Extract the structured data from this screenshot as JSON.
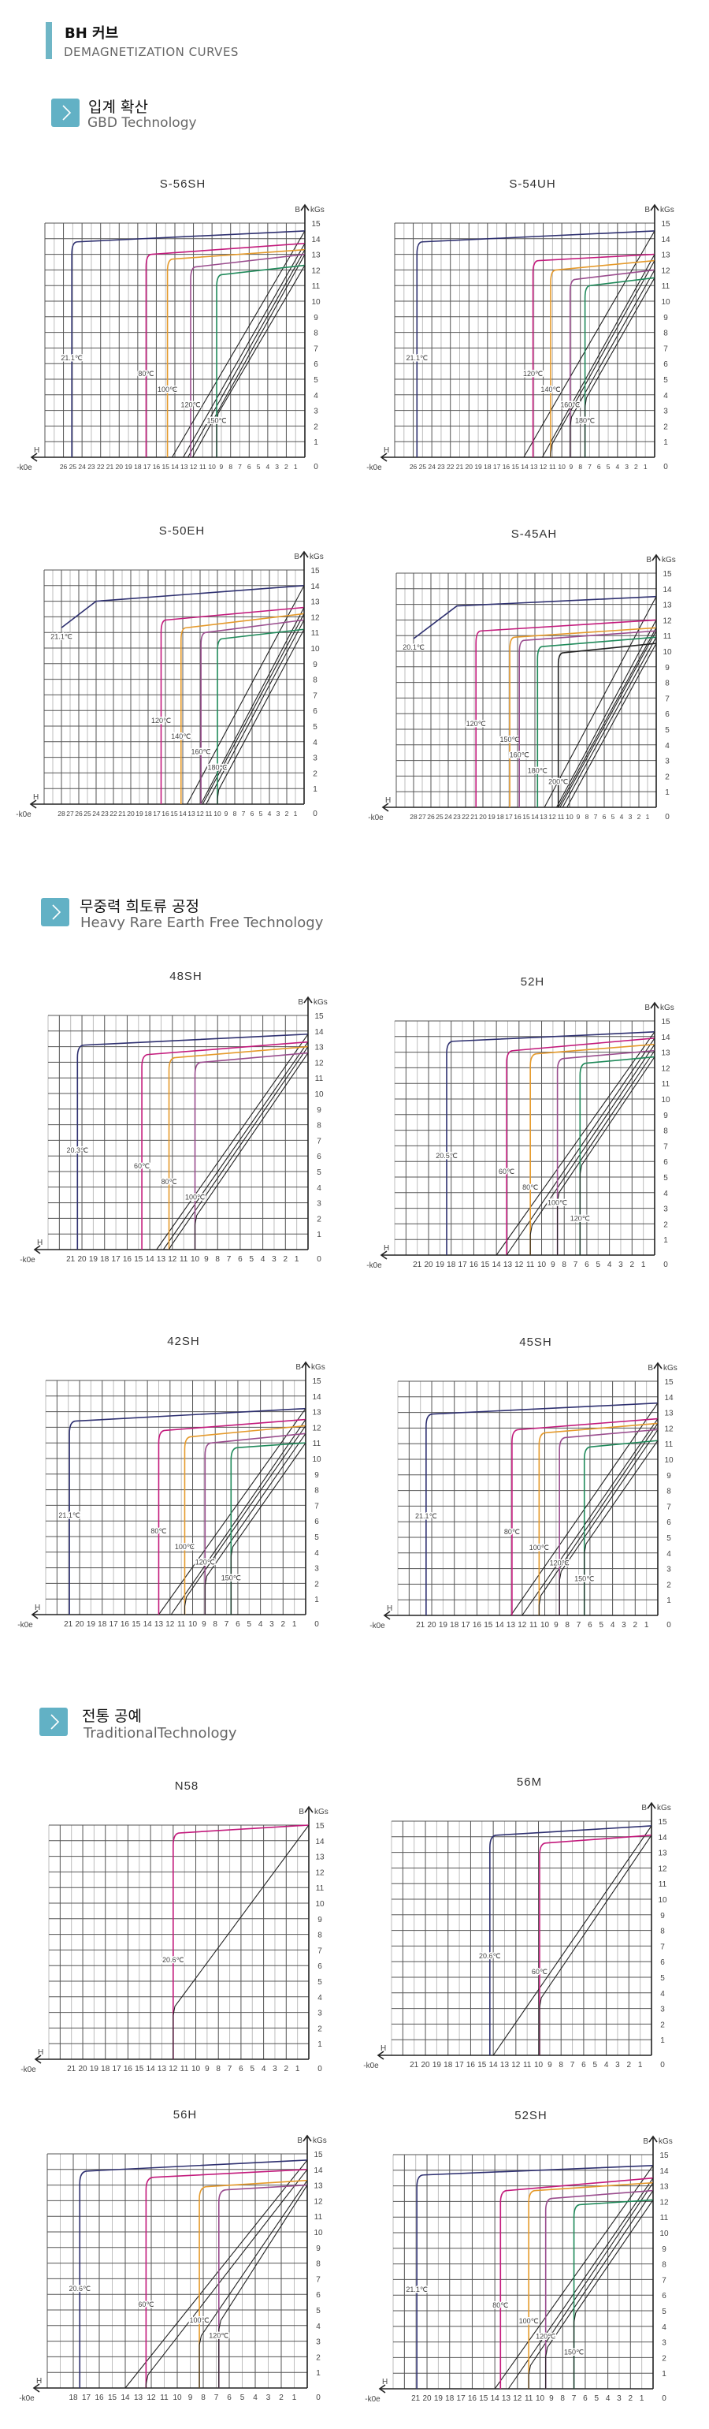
{
  "header": {
    "title": "BH 커브",
    "subtitle": "DEMAGNETIZATION CURVES",
    "accent": "#6fb6c6"
  },
  "sections": [
    {
      "title": "입계 확산",
      "subtitle": "GBD Technology",
      "icon": "chevron-right-icon"
    },
    {
      "title": "무중력 희토류 공정",
      "subtitle": "Heavy Rare Earth Free Technology",
      "icon": "chevron-right-icon"
    },
    {
      "title": "전통 공예",
      "subtitle": "TraditionalTechnology",
      "icon": "chevron-right-icon"
    }
  ],
  "axis_text": {
    "b": "B",
    "unit": "kGs",
    "h": "H",
    "h_unit": "-k0e",
    "origin": "0"
  },
  "chart_data": [
    {
      "type": "line",
      "title": "S-56SH",
      "xlim": [
        28,
        0
      ],
      "ylim": [
        0,
        15
      ],
      "grid": true,
      "xticks": [
        26,
        25,
        24,
        23,
        22,
        21,
        20,
        19,
        18,
        17,
        16,
        15,
        14,
        13,
        12,
        11,
        10,
        9,
        8,
        7,
        6,
        5,
        4,
        3,
        2,
        1
      ],
      "series": [
        {
          "name": "21.1℃",
          "color": "#2e3070",
          "Br": 14.5,
          "knee_B": 13.8,
          "Hcj": 25.1,
          "Hcb": 14.3
        },
        {
          "name": "80℃",
          "color": "#c31a7c",
          "Br": 13.7,
          "knee_B": 13.0,
          "Hcj": 17.1,
          "Hcb": 13.1
        },
        {
          "name": "100℃",
          "color": "#e59a2b",
          "Br": 13.3,
          "knee_B": 12.7,
          "Hcj": 14.8,
          "Hcb": 12.6
        },
        {
          "name": "120℃",
          "color": "#9a4d8e",
          "Br": 13.0,
          "knee_B": 12.2,
          "Hcj": 12.3,
          "Hcb": 12.1
        },
        {
          "name": "150℃",
          "color": "#1f8a5a",
          "Br": 12.3,
          "knee_B": 11.7,
          "Hcj": 9.5,
          "Hcb": 12.3
        }
      ]
    },
    {
      "type": "line",
      "title": "S-54UH",
      "xlim": [
        28,
        0
      ],
      "ylim": [
        0,
        15
      ],
      "grid": true,
      "xticks": [
        26,
        25,
        24,
        23,
        22,
        21,
        20,
        19,
        18,
        17,
        16,
        15,
        14,
        13,
        12,
        11,
        10,
        9,
        8,
        7,
        6,
        5,
        4,
        3,
        2,
        1
      ],
      "series": [
        {
          "name": "21.1℃",
          "color": "#2e3070",
          "Br": 14.5,
          "knee_B": 13.8,
          "Hcj": 25.6,
          "Hcb": 14.1
        },
        {
          "name": "120℃",
          "color": "#c31a7c",
          "Br": 13.0,
          "knee_B": 12.6,
          "Hcj": 13.1,
          "Hcb": 12.1
        },
        {
          "name": "140℃",
          "color": "#e59a2b",
          "Br": 12.6,
          "knee_B": 12.0,
          "Hcj": 11.2,
          "Hcb": 12.0
        },
        {
          "name": "160℃",
          "color": "#9a4d8e",
          "Br": 12.0,
          "knee_B": 11.4,
          "Hcj": 9.1,
          "Hcb": 11.6
        },
        {
          "name": "180℃",
          "color": "#1f8a5a",
          "Br": 11.5,
          "knee_B": 11.0,
          "Hcj": 7.5,
          "Hcb": 11.2
        }
      ]
    },
    {
      "type": "line",
      "title": "S-50EH",
      "xlim": [
        30,
        0
      ],
      "ylim": [
        0,
        15
      ],
      "grid": true,
      "xticks": [
        28,
        27,
        26,
        25,
        24,
        23,
        22,
        21,
        20,
        19,
        18,
        17,
        16,
        15,
        14,
        13,
        12,
        11,
        10,
        9,
        8,
        7,
        6,
        5,
        4,
        3,
        2,
        1
      ],
      "series": [
        {
          "name": "21.1℃",
          "color": "#2e3070",
          "Br": 14.0,
          "knee_H": 24,
          "knee_B": 13.0,
          "Hcj": 28,
          "end_B": 11.3,
          "Hcb": 13.5
        },
        {
          "name": "120℃",
          "color": "#c31a7c",
          "Br": 12.6,
          "knee_B": 11.8,
          "Hcj": 16.5,
          "Hcb": 11.9
        },
        {
          "name": "140℃",
          "color": "#e59a2b",
          "Br": 12.2,
          "knee_B": 11.3,
          "Hcj": 14.2,
          "Hcb": 11.7
        },
        {
          "name": "160℃",
          "color": "#9a4d8e",
          "Br": 11.8,
          "knee_B": 11.0,
          "Hcj": 11.9,
          "Hcb": 11.3
        },
        {
          "name": "180℃",
          "color": "#1f8a5a",
          "Br": 11.2,
          "knee_B": 10.6,
          "Hcj": 10.0,
          "Hcb": 10.9
        }
      ]
    },
    {
      "type": "line",
      "title": "S-45AH",
      "xlim": [
        30,
        0
      ],
      "ylim": [
        0,
        15
      ],
      "grid": true,
      "xticks": [
        28,
        27,
        26,
        25,
        24,
        23,
        22,
        21,
        20,
        19,
        18,
        17,
        16,
        15,
        14,
        13,
        12,
        11,
        10,
        9,
        8,
        7,
        6,
        5,
        4,
        3,
        2,
        1
      ],
      "series": [
        {
          "name": "20.1℃",
          "color": "#2e3070",
          "Br": 13.5,
          "knee_H": 23,
          "knee_B": 12.9,
          "Hcj": 28,
          "end_B": 10.8,
          "Hcb": 12.9
        },
        {
          "name": "120℃",
          "color": "#c31a7c",
          "Br": 12.0,
          "knee_B": 11.3,
          "Hcj": 20.8,
          "Hcb": 11.5
        },
        {
          "name": "150℃",
          "color": "#e59a2b",
          "Br": 11.5,
          "knee_B": 10.9,
          "Hcj": 16.9,
          "Hcb": 11.3
        },
        {
          "name": "160℃",
          "color": "#9a4d8e",
          "Br": 11.3,
          "knee_B": 10.7,
          "Hcj": 15.8,
          "Hcb": 11.1
        },
        {
          "name": "180℃",
          "color": "#1f8a5a",
          "Br": 10.9,
          "knee_B": 10.3,
          "Hcj": 13.7,
          "Hcb": 10.8
        },
        {
          "name": "200℃",
          "color": "#222222",
          "Br": 10.5,
          "knee_B": 9.9,
          "Hcj": 11.3,
          "Hcb": 10.3
        }
      ]
    },
    {
      "type": "line",
      "title": "48SH",
      "xlim": [
        23,
        0
      ],
      "ylim": [
        0,
        15
      ],
      "grid": true,
      "xticks": [
        21,
        20,
        19,
        18,
        17,
        16,
        15,
        14,
        13,
        12,
        11,
        10,
        9,
        8,
        7,
        6,
        5,
        4,
        3,
        2,
        1
      ],
      "series": [
        {
          "name": "20.3℃",
          "color": "#2e3070",
          "Br": 13.8,
          "knee_B": 13.1,
          "Hcj": 20.4,
          "Hcb": 13.4
        },
        {
          "name": "60℃",
          "color": "#c31a7c",
          "Br": 13.3,
          "knee_B": 12.5,
          "Hcj": 14.7,
          "Hcb": 12.8
        },
        {
          "name": "80℃",
          "color": "#e59a2b",
          "Br": 13.0,
          "knee_B": 12.3,
          "Hcj": 12.3,
          "Hcb": 12.5
        },
        {
          "name": "100℃",
          "color": "#9a4d8e",
          "Br": 12.6,
          "knee_B": 12.0,
          "Hcj": 10.0,
          "Hcb": 12.1
        }
      ]
    },
    {
      "type": "line",
      "title": "52H",
      "xlim": [
        23,
        0
      ],
      "ylim": [
        0,
        15
      ],
      "grid": true,
      "xticks": [
        21,
        20,
        19,
        18,
        17,
        16,
        15,
        14,
        13,
        12,
        11,
        10,
        9,
        8,
        7,
        6,
        5,
        4,
        3,
        2,
        1
      ],
      "series": [
        {
          "name": "20.5℃",
          "color": "#2e3070",
          "Br": 14.3,
          "knee_B": 13.7,
          "Hcj": 18.4,
          "Hcb": 14.0
        },
        {
          "name": "60℃",
          "color": "#c31a7c",
          "Br": 13.9,
          "knee_B": 13.1,
          "Hcj": 13.1,
          "Hcb": 13.1
        },
        {
          "name": "80℃",
          "color": "#e59a2b",
          "Br": 13.5,
          "knee_B": 12.9,
          "Hcj": 11.0,
          "Hcb": 12.8
        },
        {
          "name": "100℃",
          "color": "#9a4d8e",
          "Br": 13.1,
          "knee_B": 12.6,
          "Hcj": 8.6,
          "Hcb": 12.4
        },
        {
          "name": "120℃",
          "color": "#1f8a5a",
          "Br": 12.7,
          "knee_B": 12.3,
          "Hcj": 6.6,
          "Hcb": 12.1
        }
      ]
    },
    {
      "type": "line",
      "title": "42SH",
      "xlim": [
        23,
        0
      ],
      "ylim": [
        0,
        15
      ],
      "grid": true,
      "xticks": [
        21,
        20,
        19,
        18,
        17,
        16,
        15,
        14,
        13,
        12,
        11,
        10,
        9,
        8,
        7,
        6,
        5,
        4,
        3,
        2,
        1
      ],
      "series": [
        {
          "name": "21.1℃",
          "color": "#2e3070",
          "Br": 13.2,
          "knee_B": 12.4,
          "Hcj": 20.9,
          "Hcb": 13.0
        },
        {
          "name": "80℃",
          "color": "#c31a7c",
          "Br": 12.5,
          "knee_B": 11.8,
          "Hcj": 13.0,
          "Hcb": 11.9
        },
        {
          "name": "100℃",
          "color": "#e59a2b",
          "Br": 12.1,
          "knee_B": 11.4,
          "Hcj": 10.7,
          "Hcb": 11.8
        },
        {
          "name": "120℃",
          "color": "#9a4d8e",
          "Br": 11.6,
          "knee_B": 11.0,
          "Hcj": 8.9,
          "Hcb": 11.3
        },
        {
          "name": "150℃",
          "color": "#1f8a5a",
          "Br": 11.0,
          "knee_B": 10.7,
          "Hcj": 6.6,
          "Hcb": 10.9
        }
      ]
    },
    {
      "type": "line",
      "title": "45SH",
      "xlim": [
        23,
        0
      ],
      "ylim": [
        0,
        15
      ],
      "grid": true,
      "xticks": [
        21,
        20,
        19,
        18,
        17,
        16,
        15,
        14,
        13,
        12,
        11,
        10,
        9,
        8,
        7,
        6,
        5,
        4,
        3,
        2,
        1
      ],
      "series": [
        {
          "name": "21.1℃",
          "color": "#2e3070",
          "Br": 13.6,
          "knee_B": 12.9,
          "Hcj": 20.5,
          "Hcb": 13.0
        },
        {
          "name": "80℃",
          "color": "#c31a7c",
          "Br": 12.6,
          "knee_B": 11.9,
          "Hcj": 12.9,
          "Hcb": 12.0
        },
        {
          "name": "100℃",
          "color": "#e59a2b",
          "Br": 12.3,
          "knee_B": 11.7,
          "Hcj": 10.5,
          "Hcb": 11.7
        },
        {
          "name": "120℃",
          "color": "#9a4d8e",
          "Br": 11.9,
          "knee_B": 11.4,
          "Hcj": 8.7,
          "Hcb": 11.4
        },
        {
          "name": "150℃",
          "color": "#1f8a5a",
          "Br": 11.2,
          "knee_B": 10.8,
          "Hcj": 6.5,
          "Hcb": 11.0
        }
      ]
    },
    {
      "type": "line",
      "title": "N58",
      "xlim": [
        23,
        0
      ],
      "ylim": [
        0,
        15
      ],
      "grid": true,
      "xticks": [
        21,
        20,
        19,
        18,
        17,
        16,
        15,
        14,
        13,
        12,
        11,
        10,
        9,
        8,
        7,
        6,
        5,
        4,
        3,
        2,
        1
      ],
      "series": [
        {
          "name": "20.6℃",
          "color": "#c31a7c",
          "Br": 15.0,
          "knee_B": 14.5,
          "Hcj": 12.0,
          "Hcb": 15.5
        }
      ]
    },
    {
      "type": "line",
      "title": "56M",
      "xlim": [
        23,
        0
      ],
      "ylim": [
        0,
        15
      ],
      "grid": true,
      "xticks": [
        21,
        20,
        19,
        18,
        17,
        16,
        15,
        14,
        13,
        12,
        11,
        10,
        9,
        8,
        7,
        6,
        5,
        4,
        3,
        2,
        1
      ],
      "series": [
        {
          "name": "20.6℃",
          "color": "#2e3070",
          "Br": 14.7,
          "knee_B": 14.1,
          "Hcj": 14.3,
          "Hcb": 14.0
        },
        {
          "name": "60℃",
          "color": "#c31a7c",
          "Br": 14.1,
          "knee_B": 13.6,
          "Hcj": 9.9,
          "Hcb": 13.4
        }
      ]
    },
    {
      "type": "line",
      "title": "56H",
      "xlim": [
        20,
        0
      ],
      "ylim": [
        0,
        15
      ],
      "grid": true,
      "xticks": [
        18,
        17,
        16,
        15,
        14,
        13,
        12,
        11,
        10,
        9,
        8,
        7,
        6,
        5,
        4,
        3,
        2,
        1
      ],
      "series": [
        {
          "name": "20.6℃",
          "color": "#2e3070",
          "Br": 14.6,
          "knee_B": 13.9,
          "Hcj": 17.5,
          "Hcb": 14.0
        },
        {
          "name": "60℃",
          "color": "#c31a7c",
          "Br": 14.0,
          "knee_B": 13.5,
          "Hcj": 12.4,
          "Hcb": 13.2
        },
        {
          "name": "100℃",
          "color": "#e59a2b",
          "Br": 13.3,
          "knee_B": 12.9,
          "Hcj": 8.3,
          "Hcb": 11.1
        },
        {
          "name": "120℃",
          "color": "#9a4d8e",
          "Br": 13.0,
          "knee_B": 12.7,
          "Hcj": 6.8,
          "Hcb": 10.2
        }
      ]
    },
    {
      "type": "line",
      "title": "52SH",
      "xlim": [
        23,
        0
      ],
      "ylim": [
        0,
        15
      ],
      "grid": true,
      "xticks": [
        21,
        20,
        19,
        18,
        17,
        16,
        15,
        14,
        13,
        12,
        11,
        10,
        9,
        8,
        7,
        6,
        5,
        4,
        3,
        2,
        1
      ],
      "series": [
        {
          "name": "21.1℃",
          "color": "#2e3070",
          "Br": 14.3,
          "knee_B": 13.7,
          "Hcj": 20.9,
          "Hcb": 14.0
        },
        {
          "name": "80℃",
          "color": "#c31a7c",
          "Br": 13.5,
          "knee_B": 12.7,
          "Hcj": 13.5,
          "Hcb": 12.8
        },
        {
          "name": "100℃",
          "color": "#e59a2b",
          "Br": 13.2,
          "knee_B": 12.7,
          "Hcj": 11.0,
          "Hcb": 12.4
        },
        {
          "name": "120℃",
          "color": "#9a4d8e",
          "Br": 12.7,
          "knee_B": 12.2,
          "Hcj": 9.5,
          "Hcb": 12.0
        },
        {
          "name": "150℃",
          "color": "#1f8a5a",
          "Br": 12.1,
          "knee_B": 11.8,
          "Hcj": 7.0,
          "Hcb": 11.7
        }
      ]
    }
  ]
}
